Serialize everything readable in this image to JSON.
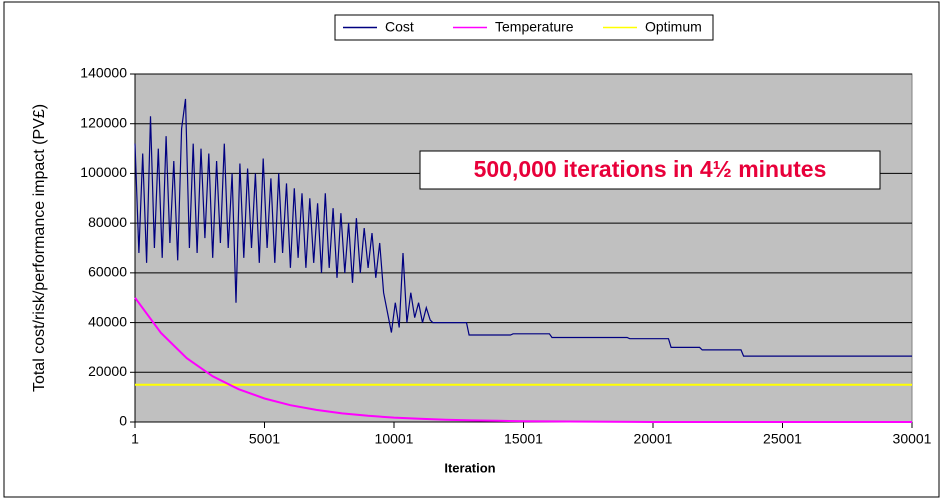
{
  "chart_data": {
    "type": "line",
    "xlabel": "Iteration",
    "ylabel": "Total cost/risk/performance impact (PV£)",
    "annotation": "500,000 iterations in 4½ minutes",
    "xlim": [
      1,
      30001
    ],
    "xticks": [
      1,
      5001,
      10001,
      15001,
      20001,
      25001,
      30001
    ],
    "ylim": [
      0,
      140000
    ],
    "yticks": [
      0,
      20000,
      40000,
      60000,
      80000,
      100000,
      120000,
      140000
    ],
    "grid": true,
    "legend": "top",
    "background": "#c0c0c0",
    "series": [
      {
        "name": "Cost",
        "color": "#000080",
        "x": [
          1,
          150,
          300,
          450,
          600,
          750,
          900,
          1050,
          1200,
          1350,
          1500,
          1650,
          1800,
          1950,
          2100,
          2250,
          2400,
          2550,
          2700,
          2850,
          3000,
          3150,
          3300,
          3450,
          3600,
          3750,
          3900,
          4050,
          4200,
          4350,
          4500,
          4650,
          4800,
          4950,
          5100,
          5250,
          5400,
          5550,
          5700,
          5850,
          6000,
          6150,
          6300,
          6450,
          6600,
          6750,
          6900,
          7050,
          7200,
          7350,
          7500,
          7650,
          7800,
          7950,
          8100,
          8250,
          8400,
          8550,
          8700,
          8850,
          9000,
          9150,
          9300,
          9450,
          9600,
          9750,
          9900,
          10050,
          10200,
          10350,
          10500,
          10650,
          10800,
          10950,
          11100,
          11250,
          11400,
          11500,
          12000,
          12800,
          12900,
          14500,
          14600,
          16000,
          16100,
          19000,
          19100,
          20600,
          20700,
          21800,
          21900,
          23400,
          23500,
          30001
        ],
        "values": [
          112000,
          68000,
          108000,
          64000,
          123000,
          70000,
          110000,
          66000,
          115000,
          72000,
          105000,
          65000,
          118000,
          130000,
          70000,
          112000,
          68000,
          110000,
          74000,
          108000,
          66000,
          105000,
          72000,
          112000,
          70000,
          100000,
          48000,
          104000,
          66000,
          102000,
          70000,
          100000,
          64000,
          106000,
          70000,
          98000,
          64000,
          100000,
          68000,
          96000,
          62000,
          94000,
          66000,
          92000,
          62000,
          90000,
          64000,
          88000,
          60000,
          92000,
          62000,
          86000,
          58000,
          84000,
          60000,
          80000,
          56000,
          82000,
          60000,
          78000,
          62000,
          76000,
          58000,
          72000,
          52000,
          44000,
          36000,
          48000,
          38000,
          68000,
          40000,
          52000,
          42000,
          48000,
          40000,
          46000,
          41000,
          40000,
          40000,
          40000,
          35000,
          35000,
          35500,
          35500,
          34000,
          34000,
          33500,
          33500,
          30000,
          30000,
          29000,
          29000,
          26500,
          26500
        ]
      },
      {
        "name": "Temperature",
        "color": "#ff00ff",
        "x": [
          1,
          1000,
          2000,
          3000,
          4000,
          5000,
          6000,
          7000,
          8000,
          9000,
          10000,
          11000,
          12000,
          13000,
          14000,
          15000,
          20001,
          25001,
          30001
        ],
        "values": [
          50000,
          35830,
          25670,
          18390,
          13180,
          9440,
          6770,
          4850,
          3470,
          2490,
          1780,
          1280,
          920,
          660,
          470,
          340,
          0,
          0,
          0
        ]
      },
      {
        "name": "Optimum",
        "color": "#ffff00",
        "x": [
          1,
          30001
        ],
        "values": [
          15000,
          15000
        ]
      }
    ]
  }
}
